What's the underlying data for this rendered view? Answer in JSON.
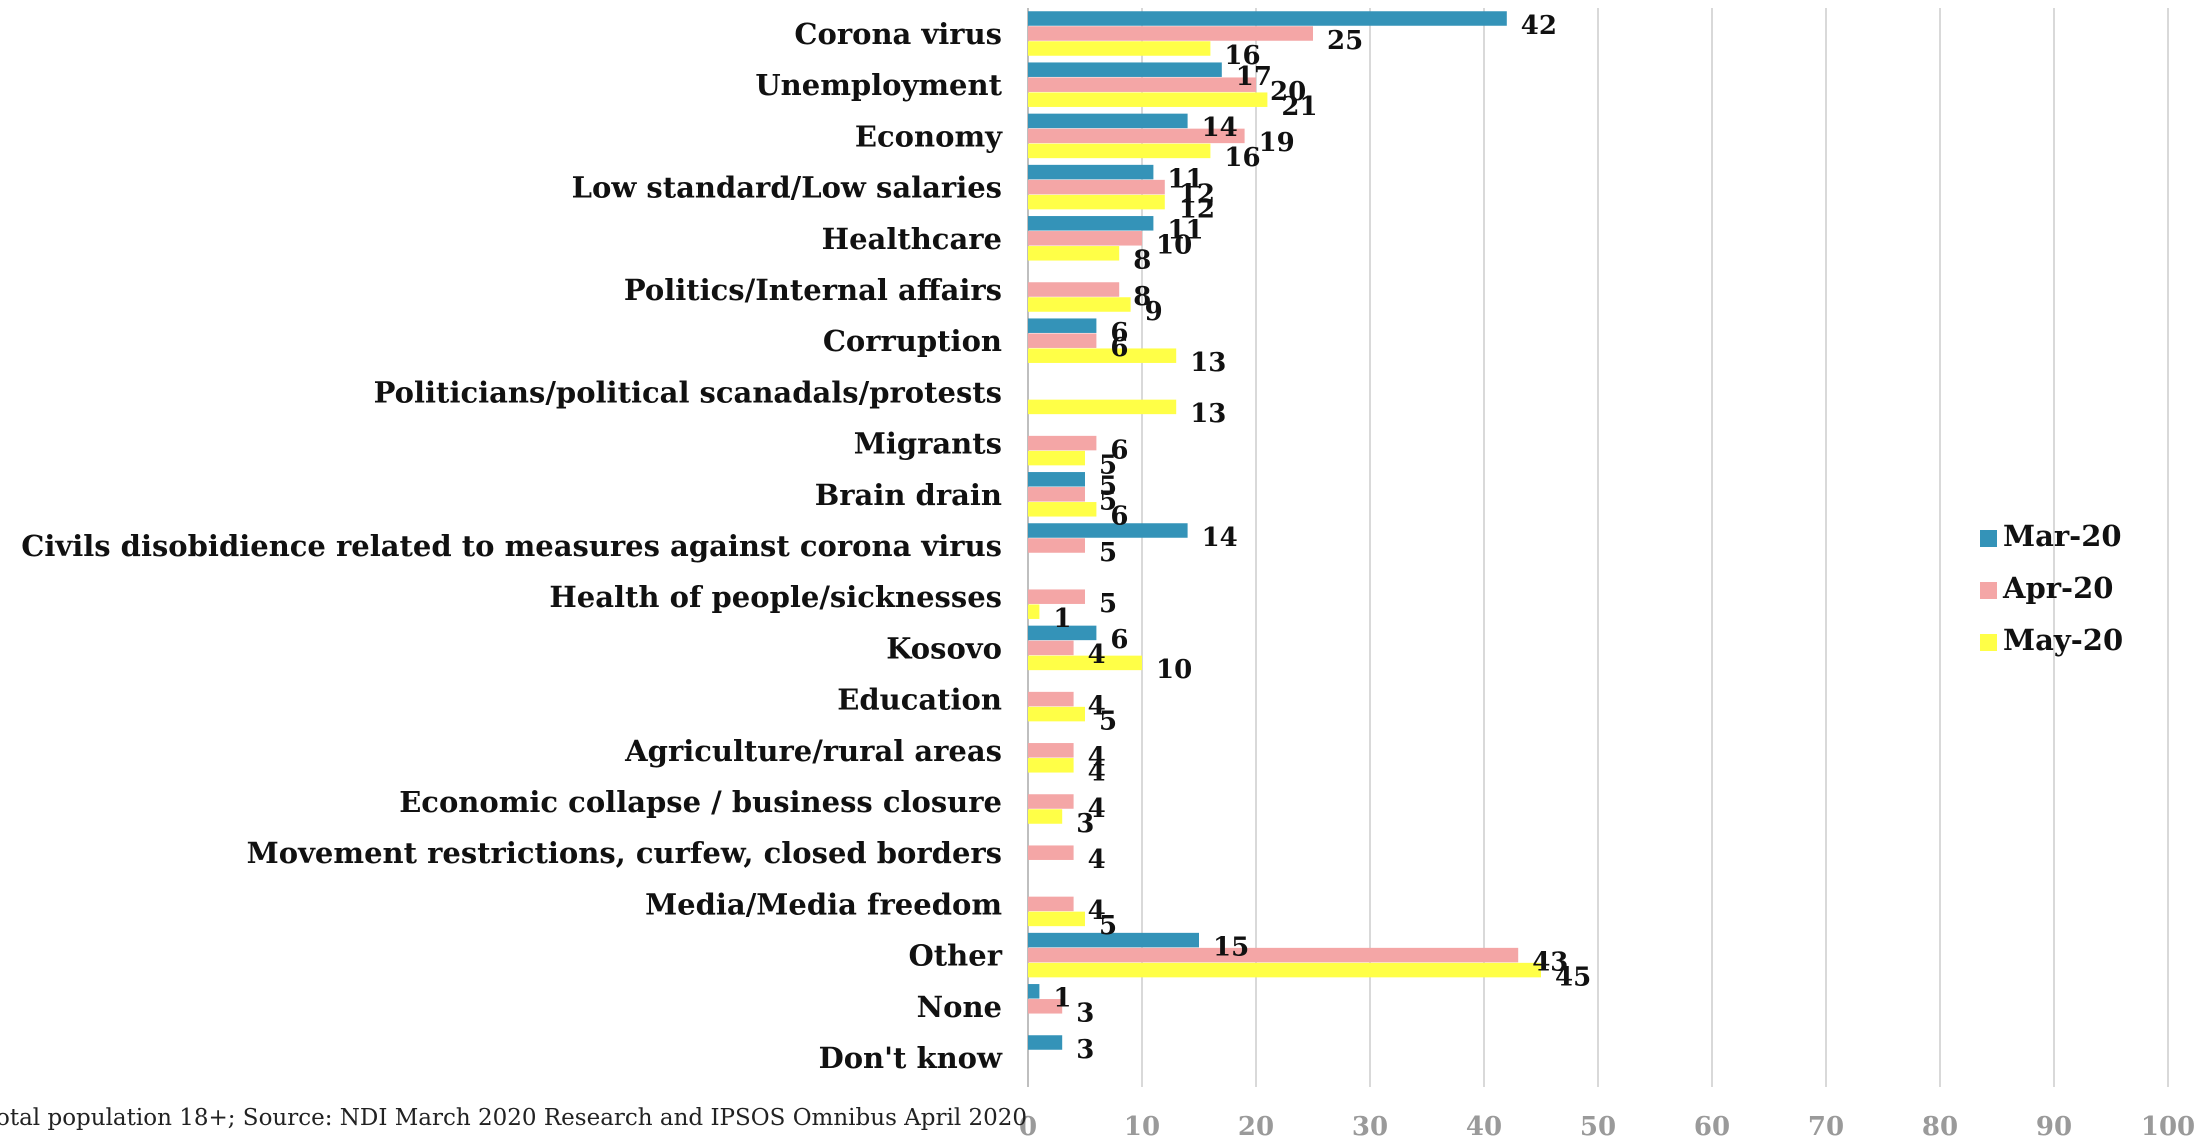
{
  "chart_data": {
    "type": "bar",
    "orientation": "horizontal",
    "categories": [
      "Corona virus",
      "Unemployment",
      "Economy",
      "Low standard/Low salaries",
      "Healthcare",
      "Politics/Internal affairs",
      "Corruption",
      "Politicians/political scanadals/protests",
      "Migrants",
      "Brain drain",
      "Civils disobidience related to measures against corona virus",
      "Health of people/sicknesses",
      "Kosovo",
      "Education",
      "Agriculture/rural areas",
      "Economic collapse / business closure",
      "Movement restrictions, curfew, closed borders",
      "Media/Media freedom",
      "Other",
      "None",
      "Don't know"
    ],
    "series": [
      {
        "name": "Mar-20",
        "color": "#3493b8",
        "values": [
          42,
          17,
          14,
          11,
          11,
          null,
          6,
          null,
          null,
          5,
          14,
          null,
          6,
          null,
          null,
          null,
          null,
          null,
          15,
          1,
          3
        ]
      },
      {
        "name": "Apr-20",
        "color": "#f4a6a6",
        "values": [
          25,
          20,
          19,
          12,
          10,
          8,
          6,
          null,
          6,
          5,
          5,
          5,
          4,
          4,
          4,
          4,
          4,
          4,
          43,
          3,
          null
        ]
      },
      {
        "name": "May-20",
        "color": "#ffff47",
        "values": [
          16,
          21,
          16,
          12,
          8,
          9,
          13,
          13,
          5,
          6,
          null,
          1,
          10,
          5,
          4,
          3,
          null,
          5,
          45,
          null,
          null
        ]
      }
    ],
    "xlim": [
      0,
      100
    ],
    "xticks": [
      "0",
      "10",
      "20",
      "30",
      "40",
      "50",
      "60",
      "70",
      "80",
      "90",
      "100"
    ],
    "grid": true,
    "legend_position": "right",
    "source_note": "otal population 18+; Source: NDI March 2020 Research and IPSOS Omnibus April 2020"
  }
}
